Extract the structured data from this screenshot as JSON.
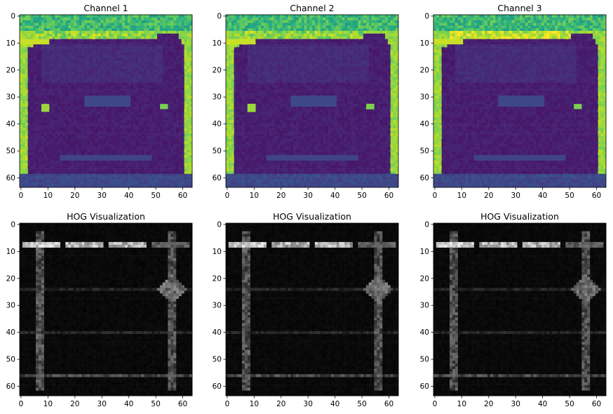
{
  "figure": {
    "background": "#ffffff"
  },
  "chart_data": [
    {
      "type": "heatmap",
      "title": "Channel 1",
      "colormap": "viridis",
      "image_size": [
        64,
        64
      ],
      "xlim": [
        0,
        64
      ],
      "ylim": [
        64,
        0
      ],
      "xticks": [
        0,
        10,
        20,
        30,
        40,
        50,
        60
      ],
      "yticks": [
        0,
        10,
        20,
        30,
        40,
        50,
        60
      ],
      "content": "car rear (dark) on bright background"
    },
    {
      "type": "heatmap",
      "title": "Channel 2",
      "colormap": "viridis",
      "image_size": [
        64,
        64
      ],
      "xlim": [
        0,
        64
      ],
      "ylim": [
        64,
        0
      ],
      "xticks": [
        0,
        10,
        20,
        30,
        40,
        50,
        60
      ],
      "yticks": [
        0,
        10,
        20,
        30,
        40,
        50,
        60
      ],
      "content": "car rear (dark) on bright background"
    },
    {
      "type": "heatmap",
      "title": "Channel 3",
      "colormap": "viridis",
      "image_size": [
        64,
        64
      ],
      "xlim": [
        0,
        64
      ],
      "ylim": [
        64,
        0
      ],
      "xticks": [
        0,
        10,
        20,
        30,
        40,
        50,
        60
      ],
      "yticks": [
        0,
        10,
        20,
        30,
        40,
        50,
        60
      ],
      "content": "car rear (dark) on bright background"
    },
    {
      "type": "heatmap",
      "title": "HOG Visualization",
      "colormap": "gray",
      "image_size": [
        64,
        64
      ],
      "xlim": [
        0,
        64
      ],
      "ylim": [
        64,
        0
      ],
      "xticks": [
        0,
        10,
        20,
        30,
        40,
        50,
        60
      ],
      "yticks": [
        0,
        10,
        20,
        30,
        40,
        50,
        60
      ],
      "content": "HOG of Channel 1"
    },
    {
      "type": "heatmap",
      "title": "HOG Visualization",
      "colormap": "gray",
      "image_size": [
        64,
        64
      ],
      "xlim": [
        0,
        64
      ],
      "ylim": [
        64,
        0
      ],
      "xticks": [
        0,
        10,
        20,
        30,
        40,
        50,
        60
      ],
      "yticks": [
        0,
        10,
        20,
        30,
        40,
        50,
        60
      ],
      "content": "HOG of Channel 2"
    },
    {
      "type": "heatmap",
      "title": "HOG Visualization",
      "colormap": "gray",
      "image_size": [
        64,
        64
      ],
      "xlim": [
        0,
        64
      ],
      "ylim": [
        64,
        0
      ],
      "xticks": [
        0,
        10,
        20,
        30,
        40,
        50,
        60
      ],
      "yticks": [
        0,
        10,
        20,
        30,
        40,
        50,
        60
      ],
      "content": "HOG of Channel 3"
    }
  ]
}
